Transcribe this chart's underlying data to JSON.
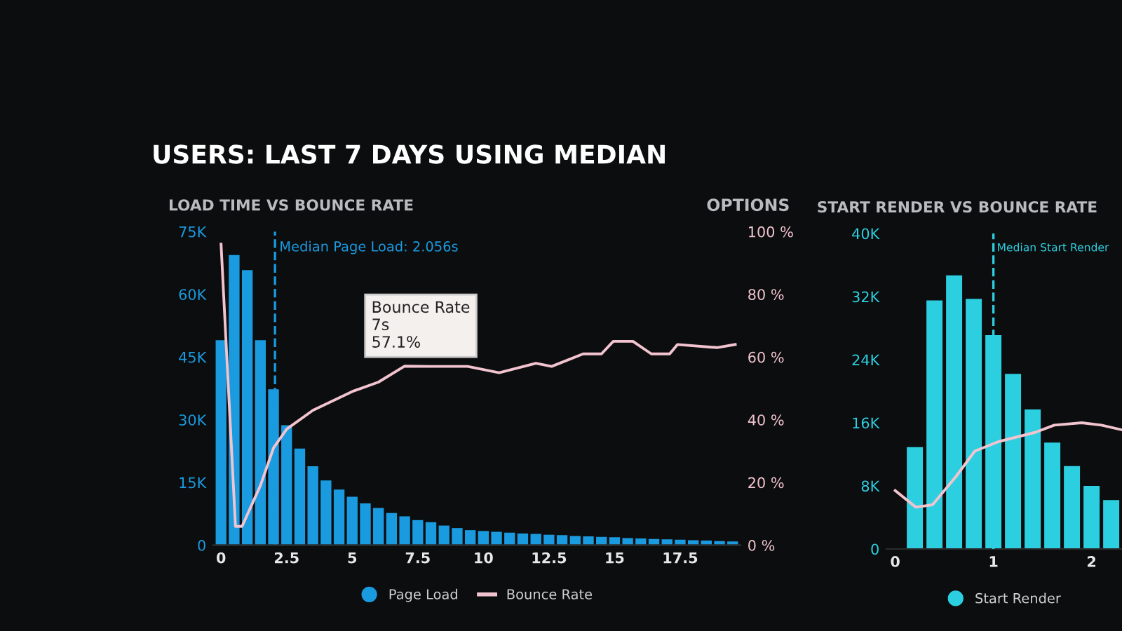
{
  "chart_data": [
    {
      "type": "bar",
      "title": "LOAD TIME VS BOUNCE RATE",
      "annotations": [
        "USERS: LAST 7 DAYS USING MEDIAN",
        "OPTIONS",
        "Bounce Rate\n7s\n57.1%"
      ],
      "x": [
        0,
        0.5,
        1,
        1.5,
        2,
        2.5,
        3,
        3.5,
        4,
        4.5,
        5,
        5.5,
        6,
        6.5,
        7,
        7.5,
        8,
        8.5,
        9,
        9.5,
        10,
        10.5,
        11,
        11.5,
        12,
        12.5,
        13,
        13.5,
        14,
        14.5,
        15,
        15.5,
        16,
        16.5,
        17,
        17.5,
        18,
        18.5,
        19,
        19.5
      ],
      "series": [
        {
          "name": "Page Load",
          "color": "#1a9be0",
          "values": [
            49000,
            69400,
            65800,
            49000,
            37300,
            28700,
            23100,
            18900,
            15500,
            13300,
            11600,
            10000,
            8900,
            7700,
            6900,
            6000,
            5500,
            4700,
            4100,
            3600,
            3400,
            3200,
            3000,
            2800,
            2700,
            2500,
            2400,
            2200,
            2100,
            2000,
            1900,
            1700,
            1600,
            1500,
            1400,
            1300,
            1200,
            1100,
            1000,
            900
          ]
        },
        {
          "name": "Bounce Rate",
          "type": "line",
          "axis": "y2",
          "color": "#f2c4cf",
          "x": [
            0,
            0.55,
            0.8,
            1.5,
            2,
            2.5,
            3.5,
            5,
            6,
            7,
            8,
            9.4,
            10.6,
            12,
            12.6,
            13.8,
            14.5,
            14.95,
            15.7,
            16.4,
            17.1,
            17.4,
            18.9,
            19.6
          ],
          "values": [
            96,
            6,
            6,
            19,
            31,
            37,
            43,
            49,
            52,
            57.1,
            57,
            57,
            55,
            58,
            57,
            61,
            61,
            65,
            65,
            61,
            61,
            64,
            63,
            64
          ]
        }
      ],
      "xlim": [
        -0.3,
        19.8
      ],
      "xticks": [
        0,
        2.5,
        5,
        7.5,
        10,
        12.5,
        15,
        17.5
      ],
      "ylim": [
        0,
        75000
      ],
      "yticks": [
        0,
        {
          "value": 15000,
          "label": "15K"
        },
        {
          "value": 30000,
          "label": "30K"
        },
        {
          "value": 45000,
          "label": "45K"
        },
        {
          "value": 60000,
          "label": "60K"
        },
        {
          "value": 75000,
          "label": "75K"
        }
      ],
      "y2lim": [
        0,
        100
      ],
      "y2ticks": [
        {
          "value": 0,
          "label": "0 %"
        },
        {
          "value": 20,
          "label": "20 %"
        },
        {
          "value": 40,
          "label": "40 %"
        },
        {
          "value": 60,
          "label": "60 %"
        },
        {
          "value": 80,
          "label": "80 %"
        },
        {
          "value": 100,
          "label": "100 %"
        }
      ],
      "ref_lines": [
        {
          "axis": "x",
          "value": 2.056,
          "label": "Median Page Load: 2.056s",
          "color": "#1a9be0",
          "line_style": "dashed"
        }
      ],
      "grid": false,
      "legend": "bottom"
    },
    {
      "type": "bar",
      "title": "START RENDER VS BOUNCE RATE",
      "x": [
        0.2,
        0.4,
        0.6,
        0.8,
        1.0,
        1.2,
        1.4,
        1.6,
        1.8,
        2.0,
        2.2
      ],
      "series": [
        {
          "name": "Start Render",
          "color": "#2ccfe0",
          "values": [
            12900,
            31500,
            34700,
            31700,
            27100,
            22200,
            17700,
            13500,
            10500,
            8000,
            6200
          ]
        },
        {
          "type": "line",
          "color": "#f2c4cf",
          "x": [
            0,
            0.21,
            0.38,
            0.62,
            0.81,
            1.05,
            1.43,
            1.62,
            1.9,
            2.1,
            2.31
          ],
          "values": [
            7400,
            5300,
            5600,
            9200,
            12400,
            13600,
            14800,
            15700,
            16000,
            15700,
            15100
          ]
        }
      ],
      "xlim": [
        -0.09,
        2.31
      ],
      "xticks": [
        0,
        1,
        2
      ],
      "ylim": [
        0,
        40000
      ],
      "yticks": [
        0,
        {
          "value": 8000,
          "label": "8K"
        },
        {
          "value": 16000,
          "label": "16K"
        },
        {
          "value": 24000,
          "label": "24K"
        },
        {
          "value": 32000,
          "label": "32K"
        },
        {
          "value": 40000,
          "label": "40K"
        }
      ],
      "ref_lines": [
        {
          "axis": "x",
          "value": 1,
          "label": "Median Start Render",
          "color": "#2ccfe0",
          "line_style": "dashed"
        }
      ],
      "grid": false,
      "legend": "bottom"
    }
  ]
}
